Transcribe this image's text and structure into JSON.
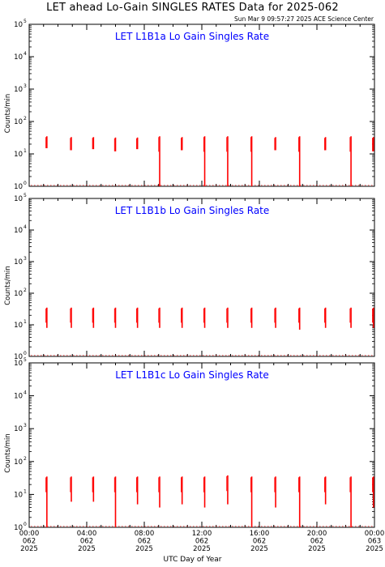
{
  "header": {
    "title": "LET ahead Lo-Gain SINGLES RATES Data for 2025-062",
    "timestamp": "Sun Mar  9 09:57:27 2025 ACE Science Center"
  },
  "chart_data": [
    {
      "type": "line",
      "title": "LET L1B1a Lo Gain Singles Rate",
      "ylabel": "Counts/min",
      "yscale": "log",
      "ylim": [
        1,
        100000
      ],
      "xlim": [
        0,
        24
      ],
      "bursts": [
        {
          "x": 1.23,
          "peak": 35,
          "low": 15
        },
        {
          "x": 2.93,
          "peak": 33,
          "low": 13
        },
        {
          "x": 4.47,
          "peak": 33,
          "low": 14
        },
        {
          "x": 6.0,
          "peak": 32,
          "low": 12
        },
        {
          "x": 7.53,
          "peak": 32,
          "low": 14
        },
        {
          "x": 9.07,
          "peak": 35,
          "low": 1
        },
        {
          "x": 10.63,
          "peak": 33,
          "low": 13
        },
        {
          "x": 12.2,
          "peak": 35,
          "low": 1
        },
        {
          "x": 13.8,
          "peak": 35,
          "low": 1
        },
        {
          "x": 15.47,
          "peak": 35,
          "low": 1
        },
        {
          "x": 17.13,
          "peak": 33,
          "low": 13
        },
        {
          "x": 18.8,
          "peak": 35,
          "low": 1
        },
        {
          "x": 20.6,
          "peak": 33,
          "low": 13
        },
        {
          "x": 22.37,
          "peak": 35,
          "low": 1
        },
        {
          "x": 23.93,
          "peak": 33,
          "low": 12
        }
      ]
    },
    {
      "type": "line",
      "title": "LET L1B1b Lo Gain Singles Rate",
      "ylabel": "Counts/min",
      "yscale": "log",
      "ylim": [
        1,
        100000
      ],
      "xlim": [
        0,
        24
      ],
      "bursts": [
        {
          "x": 1.23,
          "peak": 35,
          "low": 8
        },
        {
          "x": 2.93,
          "peak": 35,
          "low": 8
        },
        {
          "x": 4.47,
          "peak": 35,
          "low": 8
        },
        {
          "x": 6.0,
          "peak": 35,
          "low": 8
        },
        {
          "x": 7.53,
          "peak": 35,
          "low": 8
        },
        {
          "x": 9.07,
          "peak": 35,
          "low": 8
        },
        {
          "x": 10.63,
          "peak": 35,
          "low": 8
        },
        {
          "x": 12.2,
          "peak": 35,
          "low": 8
        },
        {
          "x": 13.8,
          "peak": 35,
          "low": 8
        },
        {
          "x": 15.47,
          "peak": 35,
          "low": 8
        },
        {
          "x": 17.13,
          "peak": 35,
          "low": 8
        },
        {
          "x": 18.8,
          "peak": 35,
          "low": 7
        },
        {
          "x": 20.6,
          "peak": 35,
          "low": 8
        },
        {
          "x": 22.37,
          "peak": 35,
          "low": 8
        },
        {
          "x": 23.93,
          "peak": 35,
          "low": 8
        }
      ]
    },
    {
      "type": "line",
      "title": "LET L1B1c Lo Gain Singles Rate",
      "ylabel": "Counts/min",
      "yscale": "log",
      "ylim": [
        1,
        100000
      ],
      "xlim": [
        0,
        24
      ],
      "x_tick_labels": [
        {
          "time": "00:00",
          "doy": "062",
          "year": "2025"
        },
        {
          "time": "04:00",
          "doy": "062",
          "year": "2025"
        },
        {
          "time": "08:00",
          "doy": "062",
          "year": "2025"
        },
        {
          "time": "12:00",
          "doy": "062",
          "year": "2025"
        },
        {
          "time": "16:00",
          "doy": "062",
          "year": "2025"
        },
        {
          "time": "20:00",
          "doy": "062",
          "year": "2025"
        },
        {
          "time": "00:00",
          "doy": "063",
          "year": "2025"
        }
      ],
      "xlabel": "UTC Day of Year",
      "bursts": [
        {
          "x": 1.23,
          "peak": 35,
          "low": 1
        },
        {
          "x": 2.93,
          "peak": 35,
          "low": 6
        },
        {
          "x": 4.47,
          "peak": 35,
          "low": 6
        },
        {
          "x": 6.0,
          "peak": 35,
          "low": 1
        },
        {
          "x": 7.53,
          "peak": 35,
          "low": 5
        },
        {
          "x": 9.07,
          "peak": 35,
          "low": 4
        },
        {
          "x": 10.63,
          "peak": 35,
          "low": 5
        },
        {
          "x": 12.2,
          "peak": 35,
          "low": 4
        },
        {
          "x": 13.8,
          "peak": 38,
          "low": 5
        },
        {
          "x": 15.47,
          "peak": 35,
          "low": 1
        },
        {
          "x": 17.13,
          "peak": 35,
          "low": 4
        },
        {
          "x": 18.8,
          "peak": 35,
          "low": 1
        },
        {
          "x": 20.6,
          "peak": 35,
          "low": 5
        },
        {
          "x": 22.37,
          "peak": 35,
          "low": 1
        },
        {
          "x": 23.93,
          "peak": 35,
          "low": 4
        }
      ]
    }
  ],
  "y_tick_labels": [
    "10",
    "10",
    "10",
    "10",
    "10",
    "10"
  ],
  "y_tick_exponents": [
    "0",
    "1",
    "2",
    "3",
    "4",
    "5"
  ],
  "colors": {
    "data": "#ff0000",
    "panel_title": "#0000ff",
    "axes": "#000000",
    "background": "#ffffff"
  }
}
